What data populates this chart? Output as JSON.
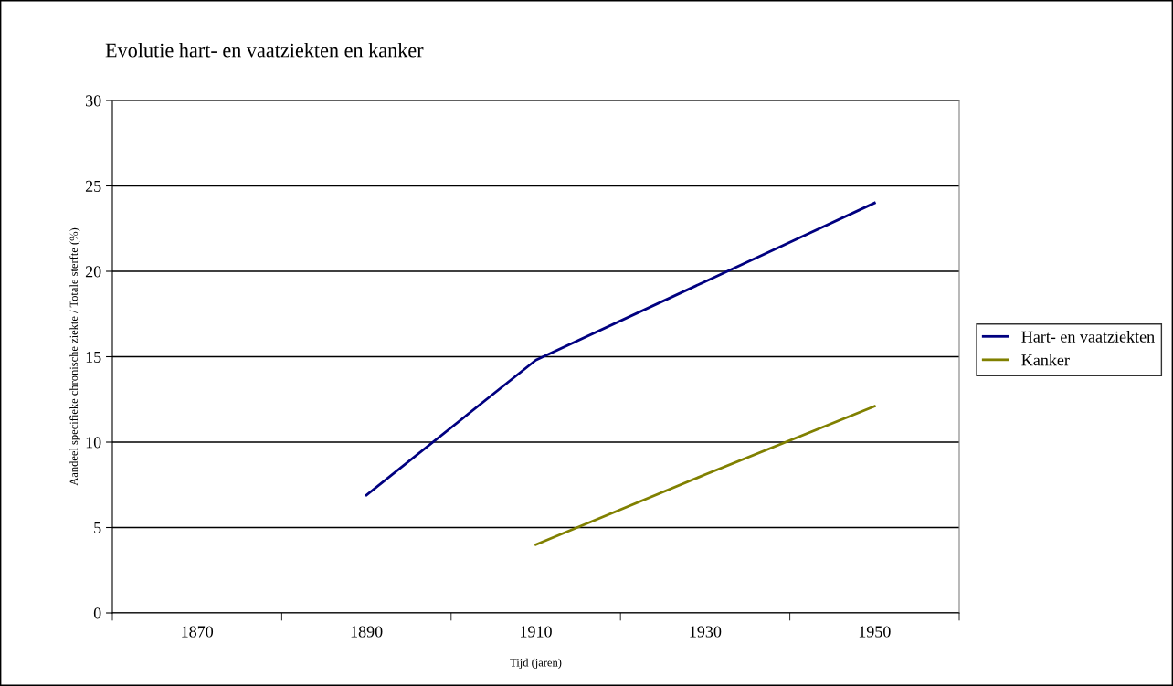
{
  "chart_data": {
    "type": "line",
    "title": "Evolutie hart- en vaatziekten en kanker",
    "xlabel": "Tijd (jaren)",
    "ylabel": "Aandeel specifieke chronische ziekte / Totale sterfte (%)",
    "categories": [
      "1870",
      "1890",
      "1910",
      "1930",
      "1950"
    ],
    "series": [
      {
        "name": "Hart- en vaatziekten",
        "color": "#000080",
        "values": [
          null,
          6.9,
          14.8,
          19.4,
          24.0
        ]
      },
      {
        "name": "Kanker",
        "color": "#808000",
        "values": [
          null,
          null,
          4.0,
          8.1,
          12.1
        ]
      }
    ],
    "ylim": [
      0,
      30
    ],
    "yticks": [
      0,
      5,
      10,
      15,
      20,
      25,
      30
    ],
    "grid": "y",
    "legend": "right",
    "marker": "none",
    "line_style": "solid"
  }
}
